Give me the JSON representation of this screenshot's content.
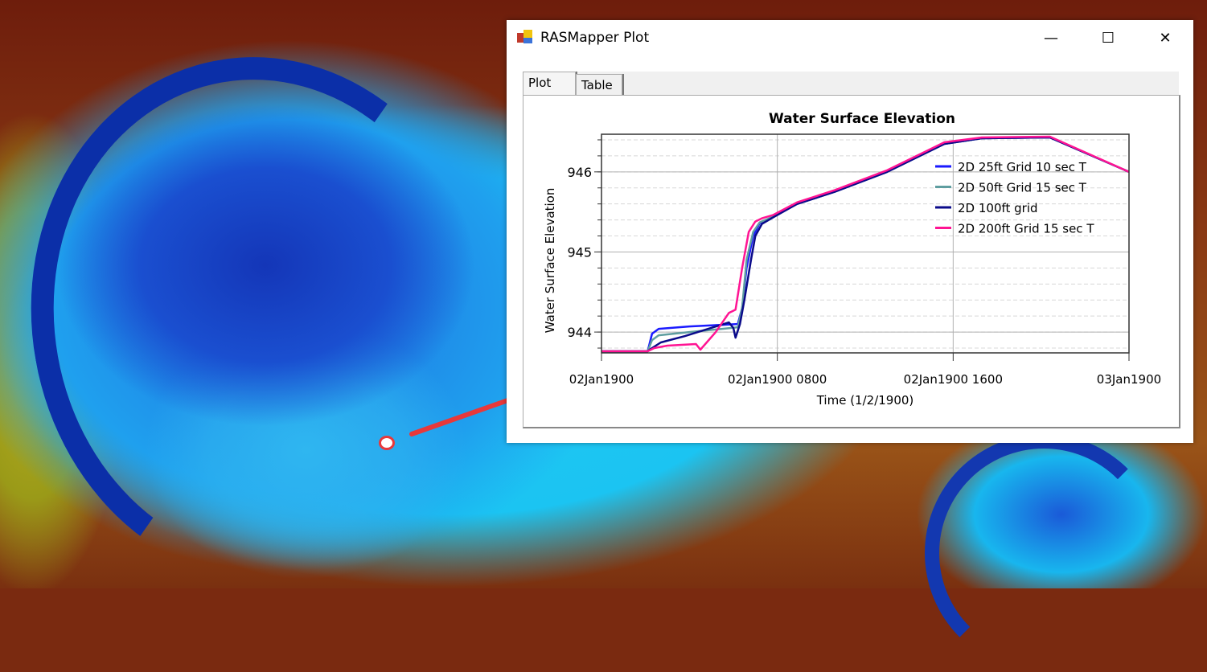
{
  "window": {
    "title": "RASMapper Plot",
    "controls": {
      "minimize": "—",
      "maximize": "☐",
      "close": "✕"
    },
    "tabs": [
      {
        "label": "Plot",
        "active": true
      },
      {
        "label": "Table",
        "active": false
      }
    ]
  },
  "map": {
    "marker_color": "#e8383a",
    "arrow_color": "#e8383a"
  },
  "chart_data": {
    "type": "line",
    "title": "Water Surface Elevation",
    "xlabel": "Time (1/2/1900)",
    "ylabel": "Water Surface Elevation",
    "x_unit": "hours after 02Jan1900 0000",
    "xlim": [
      0,
      24
    ],
    "ylim": [
      943.74,
      946.47
    ],
    "x_ticks": [
      {
        "value": 0,
        "label": "02Jan1900"
      },
      {
        "value": 8,
        "label": "02Jan1900 0800"
      },
      {
        "value": 16,
        "label": "02Jan1900 1600"
      },
      {
        "value": 24,
        "label": "03Jan1900"
      }
    ],
    "y_ticks": [
      {
        "value": 944,
        "label": "944"
      },
      {
        "value": 945,
        "label": "945"
      },
      {
        "value": 946,
        "label": "946"
      }
    ],
    "y_minor_step": 0.2,
    "grid": true,
    "legend_position": "top-right",
    "series": [
      {
        "name": "2D 25ft Grid  10 sec T",
        "color": "#1a1aff",
        "x": [
          0,
          2.1,
          2.3,
          2.6,
          4,
          5.5,
          6.2,
          6.4,
          6.6,
          6.9,
          7.2,
          7.8,
          8.9,
          10.6,
          13,
          15.6,
          17.3,
          20.4,
          24
        ],
        "y": [
          943.76,
          943.76,
          943.98,
          944.04,
          944.07,
          944.09,
          944.1,
          944.3,
          944.8,
          945.2,
          945.36,
          945.44,
          945.6,
          945.75,
          946.0,
          946.35,
          946.42,
          946.43,
          946.0
        ]
      },
      {
        "name": "2D 50ft Grid  15 sec T",
        "color": "#5f9ea0",
        "x": [
          0,
          2.1,
          2.3,
          2.6,
          4,
          5.5,
          6.2,
          6.4,
          6.6,
          6.9,
          7.2,
          7.8,
          8.9,
          10.6,
          13,
          15.6,
          17.3,
          20.4,
          24
        ],
        "y": [
          943.76,
          943.76,
          943.9,
          943.96,
          944.0,
          944.04,
          944.06,
          944.3,
          944.9,
          945.25,
          945.37,
          945.44,
          945.6,
          945.75,
          946.0,
          946.35,
          946.42,
          946.43,
          946.0
        ]
      },
      {
        "name": "2D 100ft grid",
        "color": "#0a0a8a",
        "x": [
          0,
          2.1,
          2.3,
          2.7,
          3.8,
          5.8,
          6.0,
          6.1,
          6.3,
          6.5,
          6.8,
          7.0,
          7.3,
          7.8,
          8.9,
          10.6,
          13,
          15.6,
          17.3,
          20.4,
          24
        ],
        "y": [
          943.76,
          943.76,
          943.8,
          943.87,
          943.95,
          944.12,
          944.05,
          943.93,
          944.1,
          944.4,
          944.9,
          945.2,
          945.35,
          945.43,
          945.6,
          945.75,
          946.0,
          946.35,
          946.42,
          946.43,
          946.0
        ]
      },
      {
        "name": "2D 200ft Grid  15 sec T",
        "color": "#ff1493",
        "x": [
          0,
          2.1,
          2.4,
          3.0,
          4.3,
          4.5,
          5.2,
          5.8,
          6.1,
          6.4,
          6.7,
          7.0,
          7.3,
          7.8,
          8.9,
          10.6,
          13,
          15.6,
          17.3,
          20.4,
          24
        ],
        "y": [
          943.76,
          943.76,
          943.8,
          943.83,
          943.85,
          943.78,
          944.0,
          944.24,
          944.28,
          944.8,
          945.25,
          945.38,
          945.42,
          945.46,
          945.62,
          945.77,
          946.02,
          946.37,
          946.43,
          946.44,
          946.0
        ]
      }
    ]
  }
}
